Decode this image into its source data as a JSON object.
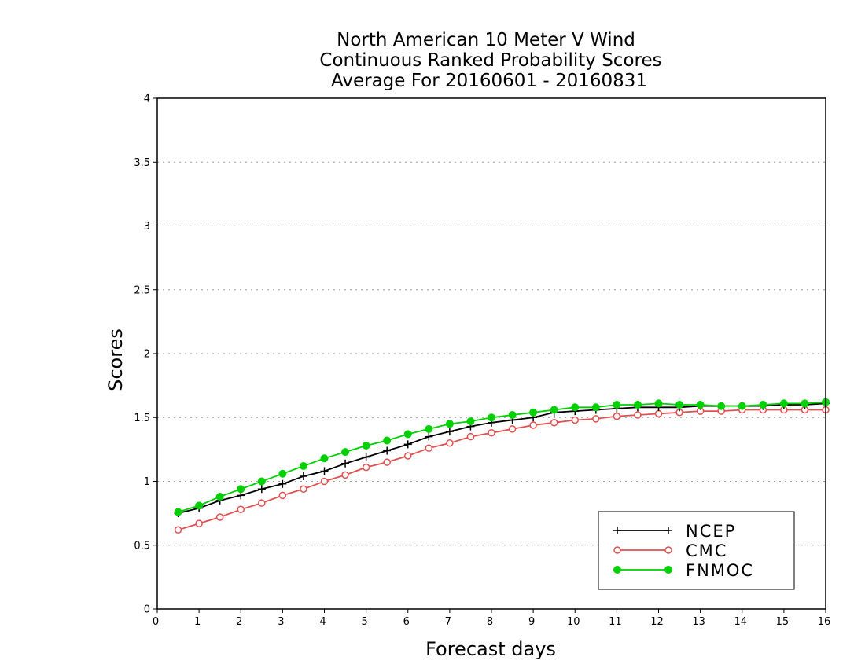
{
  "chart_data": {
    "type": "line",
    "title": [
      "North American 10 Meter V Wind",
      "Continuous Ranked Probability Scores",
      "Average For 20160601 - 20160831"
    ],
    "xlabel": "Forecast days",
    "ylabel": "Scores",
    "xlim": [
      0,
      16
    ],
    "ylim": [
      0,
      4
    ],
    "x_ticks": [
      "0",
      "1",
      "2",
      "3",
      "4",
      "5",
      "6",
      "7",
      "8",
      "9",
      "10",
      "11",
      "12",
      "13",
      "14",
      "15",
      "16"
    ],
    "y_ticks": [
      "0",
      "0.5",
      "1",
      "1.5",
      "2",
      "2.5",
      "3",
      "3.5",
      "4"
    ],
    "grid": "horizontal dotted",
    "legend_position": "bottom-right",
    "x": [
      0.5,
      1,
      1.5,
      2,
      2.5,
      3,
      3.5,
      4,
      4.5,
      5,
      5.5,
      6,
      6.5,
      7,
      7.5,
      8,
      8.5,
      9,
      9.5,
      10,
      10.5,
      11,
      11.5,
      12,
      12.5,
      13,
      13.5,
      14,
      14.5,
      15,
      15.5,
      16
    ],
    "series": [
      {
        "name": "NCEP",
        "color": "#000000",
        "marker": "plus",
        "values": [
          0.75,
          0.79,
          0.85,
          0.89,
          0.94,
          0.98,
          1.04,
          1.08,
          1.14,
          1.19,
          1.24,
          1.29,
          1.35,
          1.39,
          1.43,
          1.46,
          1.48,
          1.5,
          1.54,
          1.55,
          1.56,
          1.57,
          1.58,
          1.58,
          1.58,
          1.59,
          1.59,
          1.59,
          1.59,
          1.6,
          1.6,
          1.61
        ]
      },
      {
        "name": "CMC",
        "color": "#e05050",
        "marker": "open-circle",
        "values": [
          0.62,
          0.67,
          0.72,
          0.78,
          0.83,
          0.89,
          0.94,
          1.0,
          1.05,
          1.11,
          1.15,
          1.2,
          1.26,
          1.3,
          1.35,
          1.38,
          1.41,
          1.44,
          1.46,
          1.48,
          1.49,
          1.51,
          1.52,
          1.53,
          1.54,
          1.55,
          1.55,
          1.56,
          1.56,
          1.56,
          1.56,
          1.56
        ]
      },
      {
        "name": "FNMOC",
        "color": "#00d000",
        "marker": "filled-circle",
        "values": [
          0.76,
          0.81,
          0.88,
          0.94,
          1.0,
          1.06,
          1.12,
          1.18,
          1.23,
          1.28,
          1.32,
          1.37,
          1.41,
          1.45,
          1.47,
          1.5,
          1.52,
          1.54,
          1.56,
          1.58,
          1.58,
          1.6,
          1.6,
          1.61,
          1.6,
          1.6,
          1.59,
          1.59,
          1.6,
          1.61,
          1.61,
          1.62
        ]
      }
    ]
  }
}
